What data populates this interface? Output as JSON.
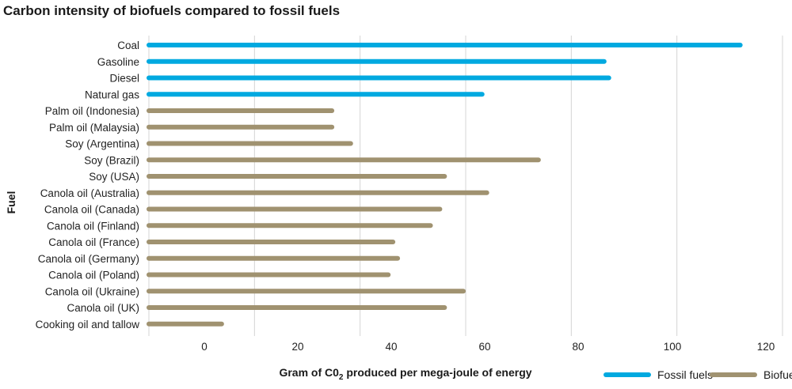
{
  "chart_data": {
    "type": "bar",
    "orientation": "horizontal",
    "title": "Carbon intensity of biofuels compared to fossil fuels",
    "ylabel": "Fuel",
    "xlabel_prefix": "Gram of C0",
    "xlabel_sub": "2",
    "xlabel_suffix": " produced per mega-joule of energy",
    "xlim": [
      -12,
      123
    ],
    "xticks": [
      0,
      20,
      40,
      60,
      80,
      100,
      120
    ],
    "grid": true,
    "legend_position": "bottom-right",
    "categories": [
      "Coal",
      "Gasoline",
      "Diesel",
      "Natural gas",
      "Palm oil (Indonesia)",
      "Palm oil (Malaysia)",
      "Soy (Argentina)",
      "Soy (Brazil)",
      "Soy (USA)",
      "Canola oil (Australia)",
      "Canola oil (Canada)",
      "Canola oil (Finland)",
      "Canola oil (France)",
      "Canola oil (Germany)",
      "Canola oil (Poland)",
      "Canola oil (Ukraine)",
      "Canola oil (UK)",
      "Cooking oil and tallow"
    ],
    "values": [
      114,
      85,
      86,
      59,
      27,
      27,
      31,
      71,
      51,
      60,
      50,
      48,
      40,
      41,
      39,
      55,
      51,
      3.5
    ],
    "groups": [
      "Fossil fuels",
      "Fossil fuels",
      "Fossil fuels",
      "Fossil fuels",
      "Biofuels",
      "Biofuels",
      "Biofuels",
      "Biofuels",
      "Biofuels",
      "Biofuels",
      "Biofuels",
      "Biofuels",
      "Biofuels",
      "Biofuels",
      "Biofuels",
      "Biofuels",
      "Biofuels",
      "Biofuels"
    ],
    "series": [
      {
        "name": "Fossil fuels",
        "color": "#00a9e0"
      },
      {
        "name": "Biofuels",
        "color": "#a09270"
      }
    ]
  }
}
